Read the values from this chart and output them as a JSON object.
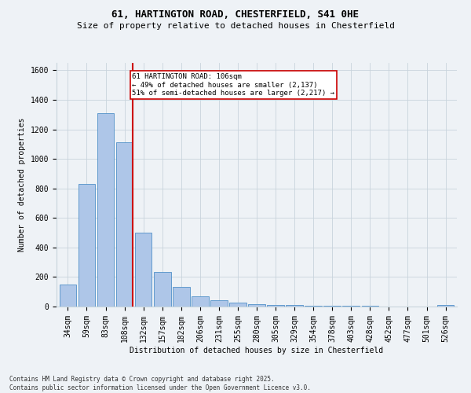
{
  "title_line1": "61, HARTINGTON ROAD, CHESTERFIELD, S41 0HE",
  "title_line2": "Size of property relative to detached houses in Chesterfield",
  "xlabel": "Distribution of detached houses by size in Chesterfield",
  "ylabel": "Number of detached properties",
  "footnote1": "Contains HM Land Registry data © Crown copyright and database right 2025.",
  "footnote2": "Contains public sector information licensed under the Open Government Licence v3.0.",
  "annotation_line1": "61 HARTINGTON ROAD: 106sqm",
  "annotation_line2": "← 49% of detached houses are smaller (2,137)",
  "annotation_line3": "51% of semi-detached houses are larger (2,217) →",
  "categories": [
    "34sqm",
    "59sqm",
    "83sqm",
    "108sqm",
    "132sqm",
    "157sqm",
    "182sqm",
    "206sqm",
    "231sqm",
    "255sqm",
    "280sqm",
    "305sqm",
    "329sqm",
    "354sqm",
    "378sqm",
    "403sqm",
    "428sqm",
    "452sqm",
    "477sqm",
    "501sqm",
    "526sqm"
  ],
  "values": [
    150,
    830,
    1310,
    1110,
    500,
    235,
    135,
    70,
    40,
    25,
    15,
    10,
    10,
    5,
    5,
    5,
    3,
    2,
    2,
    2,
    10
  ],
  "bar_color": "#aec6e8",
  "bar_edge_color": "#5090c8",
  "red_line_color": "#cc0000",
  "annotation_box_color": "#cc0000",
  "grid_color": "#c8d4dc",
  "background_color": "#eef2f6",
  "ylim": [
    0,
    1650
  ],
  "yticks": [
    0,
    200,
    400,
    600,
    800,
    1000,
    1200,
    1400,
    1600
  ],
  "red_line_index": 3,
  "title1_fontsize": 9,
  "title2_fontsize": 8,
  "axis_label_fontsize": 7,
  "tick_fontsize": 7,
  "annotation_fontsize": 6.5,
  "footnote_fontsize": 5.5
}
